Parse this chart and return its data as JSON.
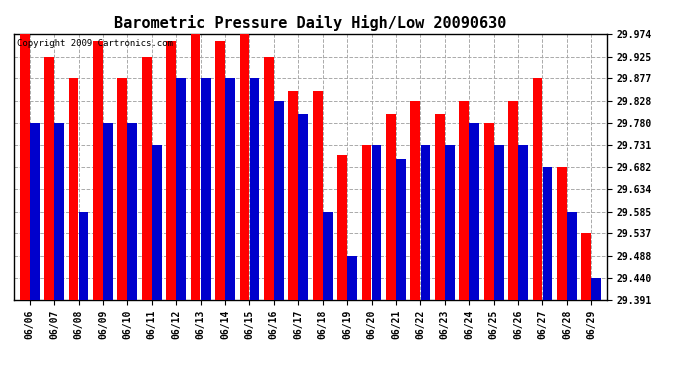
{
  "title": "Barometric Pressure Daily High/Low 20090630",
  "copyright": "Copyright 2009 Cartronics.com",
  "dates": [
    "06/06",
    "06/07",
    "06/08",
    "06/09",
    "06/10",
    "06/11",
    "06/12",
    "06/13",
    "06/14",
    "06/15",
    "06/16",
    "06/17",
    "06/18",
    "06/19",
    "06/20",
    "06/21",
    "06/22",
    "06/23",
    "06/24",
    "06/25",
    "06/26",
    "06/27",
    "06/28",
    "06/29"
  ],
  "highs": [
    29.974,
    29.925,
    29.877,
    29.96,
    29.877,
    29.925,
    29.96,
    29.974,
    29.96,
    29.974,
    29.925,
    29.85,
    29.85,
    29.71,
    29.731,
    29.8,
    29.828,
    29.8,
    29.828,
    29.78,
    29.828,
    29.877,
    29.682,
    29.537
  ],
  "lows": [
    29.78,
    29.78,
    29.585,
    29.78,
    29.78,
    29.731,
    29.877,
    29.877,
    29.877,
    29.877,
    29.828,
    29.8,
    29.585,
    29.488,
    29.731,
    29.7,
    29.731,
    29.731,
    29.78,
    29.731,
    29.731,
    29.682,
    29.585,
    29.44
  ],
  "high_color": "#ff0000",
  "low_color": "#0000cc",
  "bg_color": "#ffffff",
  "yticks": [
    29.391,
    29.44,
    29.488,
    29.537,
    29.585,
    29.634,
    29.682,
    29.731,
    29.78,
    29.828,
    29.877,
    29.925,
    29.974
  ],
  "ymin": 29.391,
  "ymax": 29.974,
  "title_fontsize": 11,
  "tick_fontsize": 7,
  "copyright_fontsize": 6.5
}
